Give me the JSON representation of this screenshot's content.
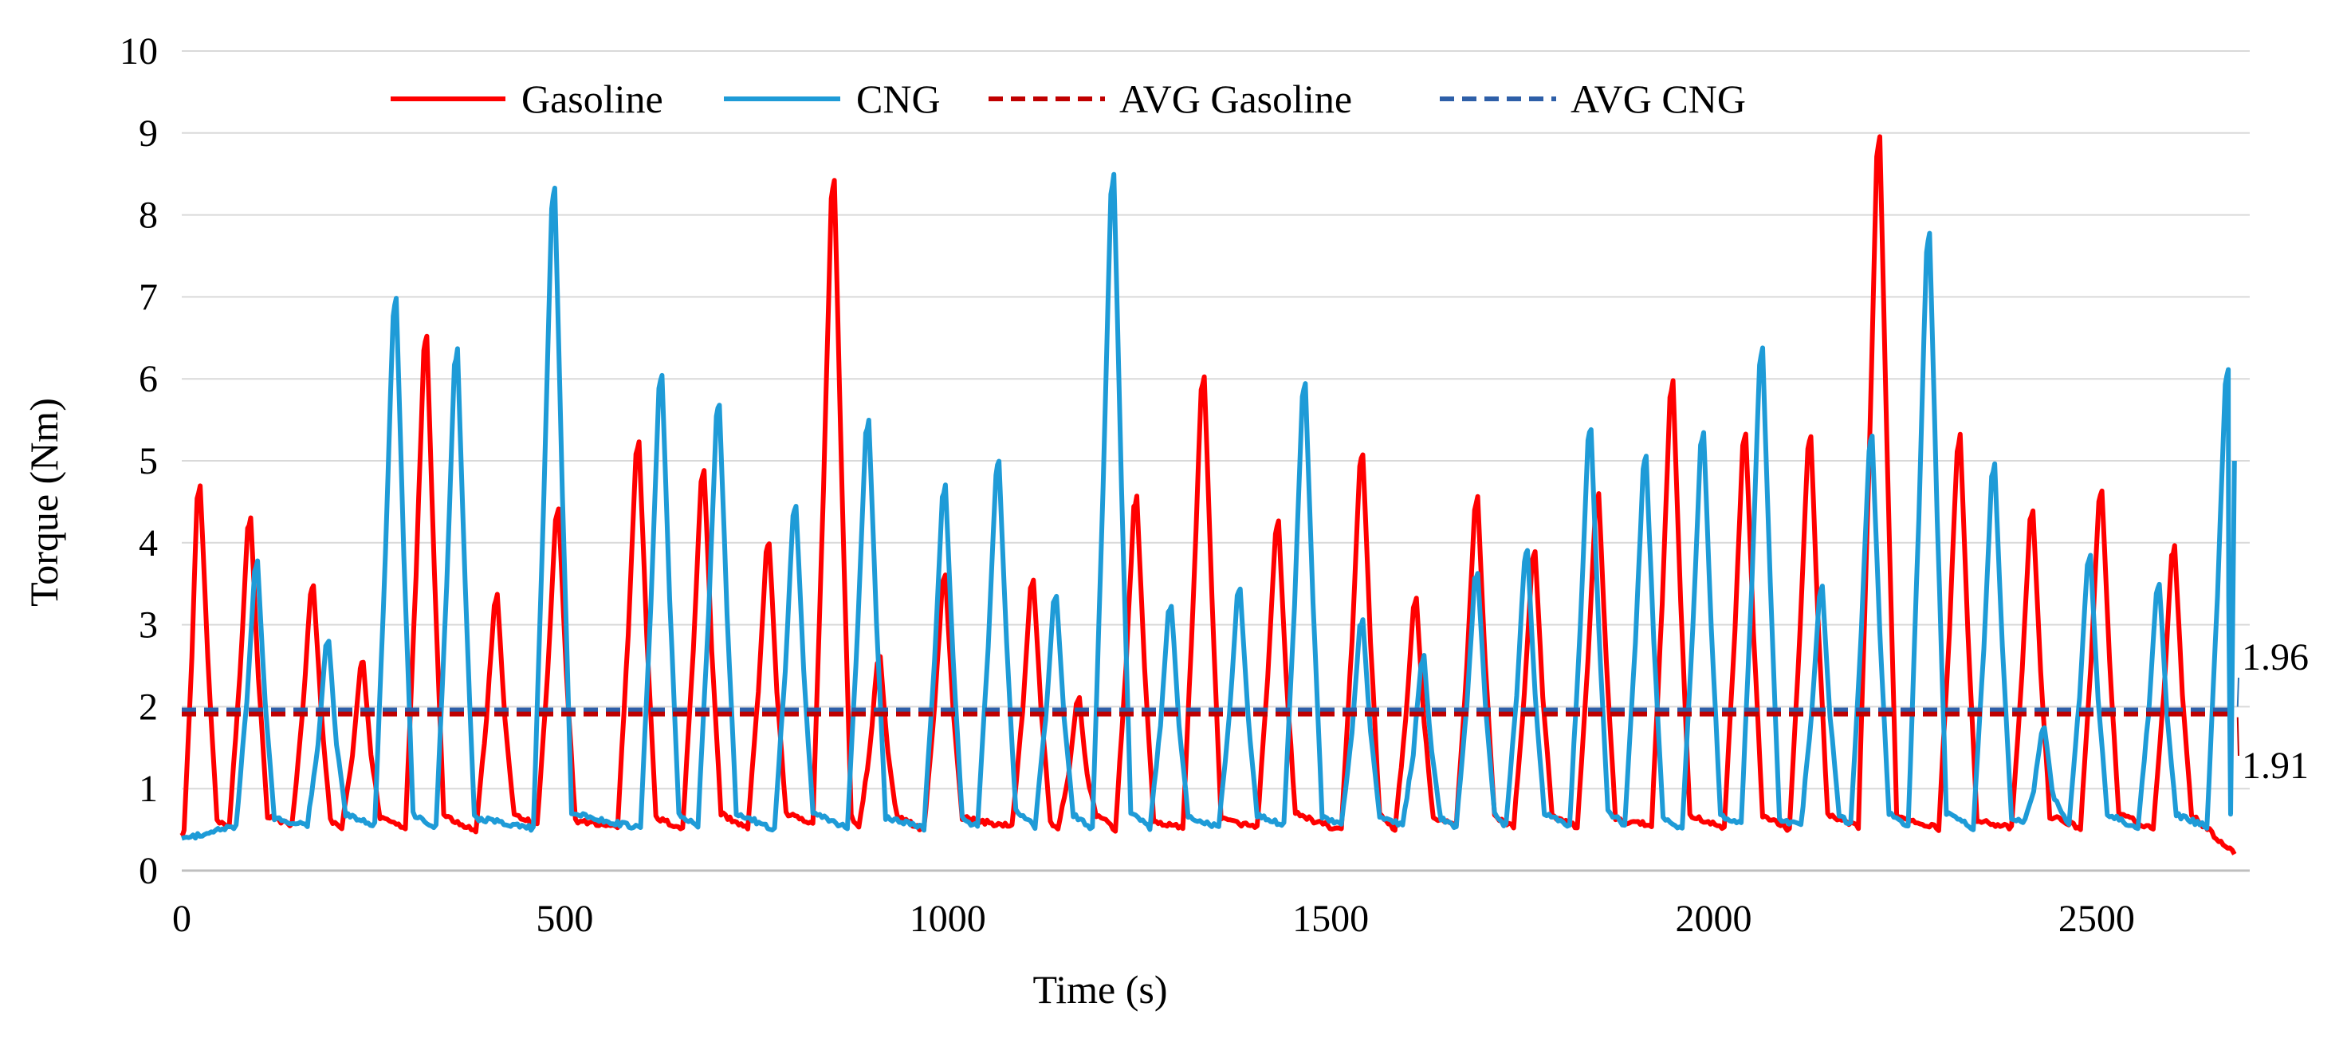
{
  "chart_data": {
    "type": "line",
    "title": "",
    "xlabel": "Time (s)",
    "ylabel": "Torque (Nm)",
    "xlim": [
      0,
      2700
    ],
    "ylim": [
      0,
      10
    ],
    "x_ticks": [
      0,
      500,
      1000,
      1500,
      2000,
      2500
    ],
    "y_ticks": [
      0,
      1,
      2,
      3,
      4,
      5,
      6,
      7,
      8,
      9,
      10
    ],
    "grid": "horizontal",
    "legend_position": "top",
    "series": [
      {
        "name": "Gasoline",
        "style": "solid",
        "color": "#ff0000",
        "peaks": [
          [
            22,
            4.7
          ],
          [
            88,
            4.3
          ],
          [
            170,
            3.5
          ],
          [
            235,
            2.55
          ],
          [
            318,
            6.55
          ],
          [
            410,
            3.35
          ],
          [
            490,
            4.4
          ],
          [
            595,
            5.25
          ],
          [
            680,
            4.9
          ],
          [
            765,
            4.0
          ],
          [
            850,
            8.45
          ],
          [
            910,
            2.6
          ],
          [
            995,
            3.6
          ],
          [
            1110,
            3.55
          ],
          [
            1170,
            2.1
          ],
          [
            1245,
            4.55
          ],
          [
            1333,
            6.05
          ],
          [
            1430,
            4.25
          ],
          [
            1540,
            5.1
          ],
          [
            1610,
            3.3
          ],
          [
            1690,
            4.55
          ],
          [
            1765,
            3.9
          ],
          [
            1848,
            4.6
          ],
          [
            1945,
            5.95
          ],
          [
            2040,
            5.35
          ],
          [
            2125,
            5.3
          ],
          [
            2215,
            8.95
          ],
          [
            2320,
            5.3
          ],
          [
            2415,
            4.4
          ],
          [
            2505,
            4.65
          ],
          [
            2600,
            3.95
          ]
        ],
        "average": 1.91
      },
      {
        "name": "CNG",
        "style": "solid",
        "color": "#1e9bd7",
        "peaks": [
          [
            97,
            3.75
          ],
          [
            190,
            2.8
          ],
          [
            278,
            7.0
          ],
          [
            358,
            6.35
          ],
          [
            485,
            8.35
          ],
          [
            625,
            6.05
          ],
          [
            700,
            5.7
          ],
          [
            800,
            4.45
          ],
          [
            895,
            5.5
          ],
          [
            995,
            4.7
          ],
          [
            1065,
            5.0
          ],
          [
            1140,
            3.35
          ],
          [
            1215,
            8.5
          ],
          [
            1290,
            3.25
          ],
          [
            1380,
            3.45
          ],
          [
            1465,
            5.95
          ],
          [
            1540,
            3.05
          ],
          [
            1620,
            2.6
          ],
          [
            1690,
            3.65
          ],
          [
            1755,
            3.9
          ],
          [
            1838,
            5.4
          ],
          [
            1910,
            5.05
          ],
          [
            1985,
            5.35
          ],
          [
            2062,
            6.35
          ],
          [
            2140,
            3.45
          ],
          [
            2205,
            5.3
          ],
          [
            2280,
            7.8
          ],
          [
            2365,
            4.95
          ],
          [
            2430,
            1.75
          ],
          [
            2490,
            3.85
          ],
          [
            2580,
            3.5
          ],
          [
            2670,
            6.1
          ]
        ],
        "average": 1.96
      },
      {
        "name": "AVG Gasoline",
        "style": "dashed",
        "color": "#c00000",
        "value": 1.91
      },
      {
        "name": "AVG CNG",
        "style": "dashed",
        "color": "#2e5fa8",
        "value": 1.96
      }
    ],
    "annotations": [
      {
        "text": "1.96",
        "series": "AVG CNG",
        "value": 1.96
      },
      {
        "text": "1.91",
        "series": "AVG Gasoline",
        "value": 1.91
      }
    ]
  }
}
